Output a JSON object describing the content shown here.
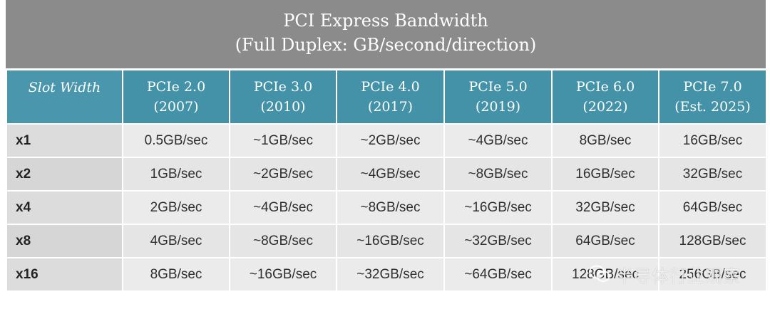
{
  "title": {
    "line1": "PCI Express Bandwidth",
    "line2": "(Full Duplex: GB/second/direction)"
  },
  "columns": [
    {
      "line1": "Slot Width",
      "line2": ""
    },
    {
      "line1": "PCIe 2.0",
      "line2": "(2007)"
    },
    {
      "line1": "PCIe 3.0",
      "line2": "(2010)"
    },
    {
      "line1": "PCIe 4.0",
      "line2": "(2017)"
    },
    {
      "line1": "PCIe 5.0",
      "line2": "(2019)"
    },
    {
      "line1": "PCIe 6.0",
      "line2": "(2022)"
    },
    {
      "line1": "PCIe 7.0",
      "line2": "(Est. 2025)"
    }
  ],
  "rows": [
    {
      "slot": "x1",
      "cells": [
        "0.5GB/sec",
        "~1GB/sec",
        "~2GB/sec",
        "~4GB/sec",
        "8GB/sec",
        "16GB/sec"
      ]
    },
    {
      "slot": "x2",
      "cells": [
        "1GB/sec",
        "~2GB/sec",
        "~4GB/sec",
        "~8GB/sec",
        "16GB/sec",
        "32GB/sec"
      ]
    },
    {
      "slot": "x4",
      "cells": [
        "2GB/sec",
        "~4GB/sec",
        "~8GB/sec",
        "~16GB/sec",
        "32GB/sec",
        "64GB/sec"
      ]
    },
    {
      "slot": "x8",
      "cells": [
        "4GB/sec",
        "~8GB/sec",
        "~16GB/sec",
        "~32GB/sec",
        "64GB/sec",
        "128GB/sec"
      ]
    },
    {
      "slot": "x16",
      "cells": [
        "8GB/sec",
        "~16GB/sec",
        "~32GB/sec",
        "~64GB/sec",
        "128GB/sec",
        "256GB/sec"
      ]
    }
  ],
  "watermark": {
    "text": "半导体行业观察",
    "icon": "wechat-icon"
  },
  "colors": {
    "title_bg": "#8b8b8b",
    "header_bg": "#4492a8",
    "cell_bg": "#ebebeb",
    "slot_bg": "#dcdcdc"
  }
}
